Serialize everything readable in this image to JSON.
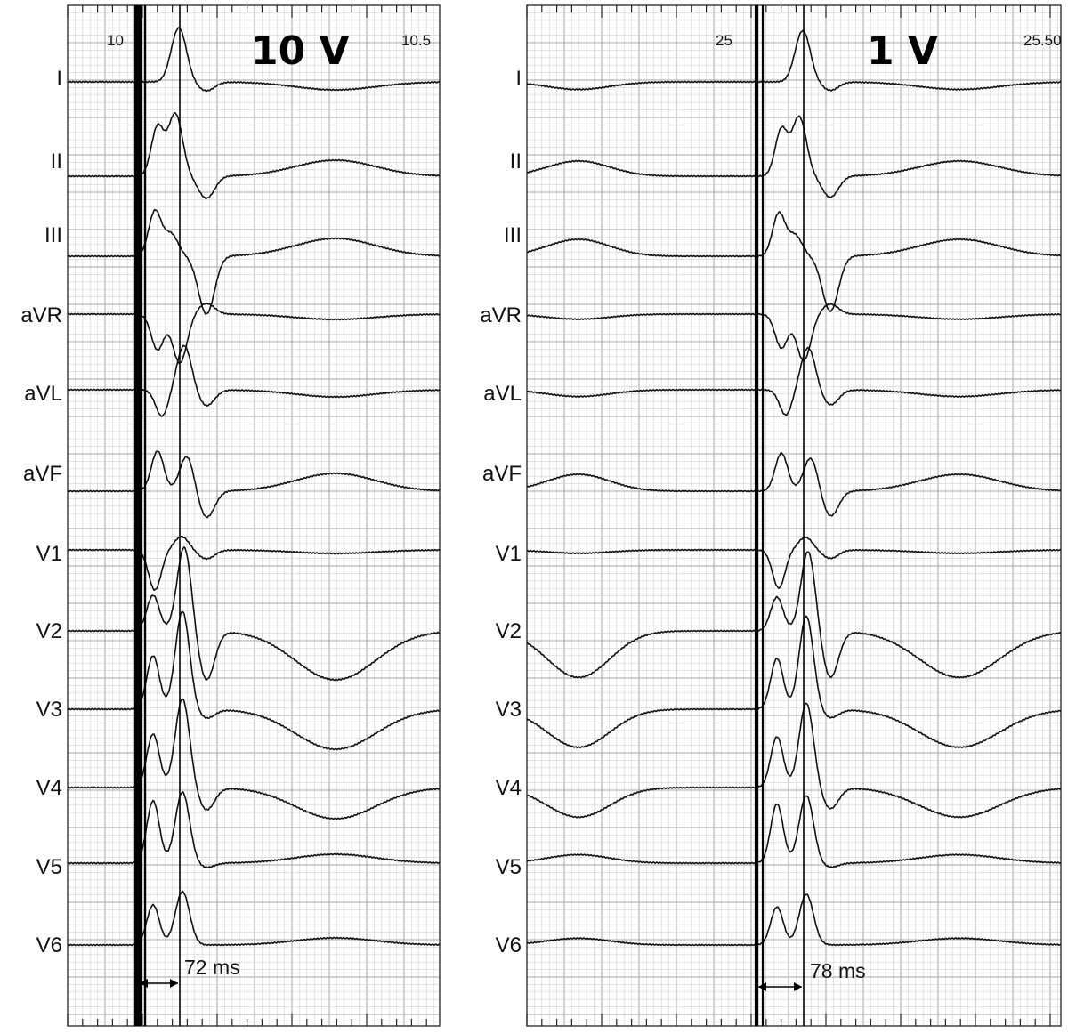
{
  "panels": [
    {
      "title": "10 V",
      "time_start_label": "10",
      "time_end_label": "10.5",
      "measurement_label": "72 ms",
      "pre_beat_waves": false
    },
    {
      "title": "1 V",
      "time_start_label": "25",
      "time_end_label": "25.50",
      "measurement_label": "78 ms",
      "pre_beat_waves": true
    }
  ],
  "leads": [
    "I",
    "II",
    "III",
    "aVR",
    "aVL",
    "aVF",
    "V1",
    "V2",
    "V3",
    "V4",
    "V5",
    "V6"
  ],
  "colors": {
    "grid_minor": "#d2d2d2",
    "grid_major": "#a6a6a6",
    "trace": "#111111",
    "background": "#ffffff"
  }
}
